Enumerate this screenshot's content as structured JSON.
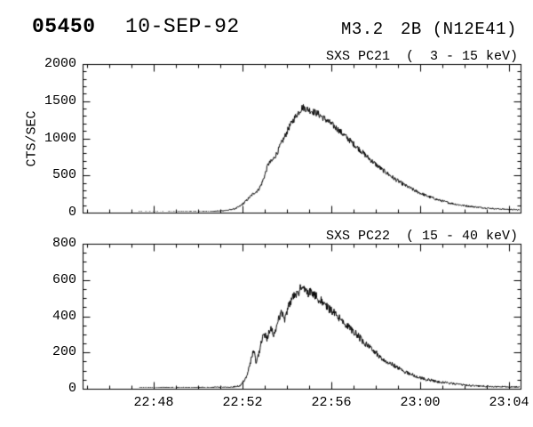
{
  "header": {
    "event_number": "05450",
    "date": "10-SEP-92",
    "xray_class": "M3.2",
    "optical_class_location": "2B (N12E41)"
  },
  "time_axis": {
    "description": "time of day, minutes after 22:40",
    "tick_labels": [
      "22:48",
      "22:52",
      "22:56",
      "23:00",
      "23:04"
    ],
    "tick_minutes": [
      8,
      12,
      16,
      20,
      24
    ],
    "minor_tick_every_minutes": 1,
    "range_minutes": [
      4.8,
      24.52
    ],
    "data_start_minute": 7.28
  },
  "chart_data": [
    {
      "type": "line",
      "title": "SXS PC21  (  3 - 15 keV)",
      "ylabel": "CTS/SEC",
      "ylim": [
        0,
        2000
      ],
      "ytick_values": [
        0,
        500,
        1000,
        1500,
        2000
      ],
      "ytick_labels": [
        "0",
        "500",
        "1000",
        "1500",
        "2000"
      ],
      "ytick_minor_step": 100,
      "grid": false,
      "line_color": "#000000",
      "series": [
        {
          "name": "SXS PC21 3-15 keV count rate",
          "units": "CTS/SEC",
          "noise_k": 1.3,
          "noise_floor": 7,
          "points": [
            [
              7.28,
              8
            ],
            [
              8.0,
              9
            ],
            [
              9.0,
              10
            ],
            [
              10.0,
              12
            ],
            [
              10.6,
              15
            ],
            [
              11.0,
              22
            ],
            [
              11.4,
              35
            ],
            [
              11.7,
              55
            ],
            [
              11.9,
              90
            ],
            [
              12.1,
              140
            ],
            [
              12.3,
              200
            ],
            [
              12.5,
              260
            ],
            [
              12.7,
              300
            ],
            [
              12.85,
              380
            ],
            [
              13.0,
              500
            ],
            [
              13.15,
              650
            ],
            [
              13.35,
              700
            ],
            [
              13.55,
              800
            ],
            [
              13.7,
              900
            ],
            [
              13.9,
              1020
            ],
            [
              14.1,
              1150
            ],
            [
              14.4,
              1300
            ],
            [
              14.7,
              1420
            ],
            [
              14.95,
              1390
            ],
            [
              15.4,
              1330
            ],
            [
              15.8,
              1240
            ],
            [
              16.3,
              1120
            ],
            [
              16.8,
              980
            ],
            [
              17.3,
              840
            ],
            [
              17.8,
              700
            ],
            [
              18.3,
              575
            ],
            [
              18.8,
              465
            ],
            [
              19.3,
              370
            ],
            [
              19.8,
              290
            ],
            [
              20.3,
              225
            ],
            [
              20.8,
              172
            ],
            [
              21.3,
              132
            ],
            [
              21.8,
              102
            ],
            [
              22.3,
              82
            ],
            [
              22.8,
              66
            ],
            [
              23.3,
              54
            ],
            [
              23.8,
              45
            ],
            [
              24.3,
              38
            ],
            [
              24.52,
              35
            ]
          ]
        }
      ]
    },
    {
      "type": "line",
      "title": "SXS PC22  ( 15 - 40 keV)",
      "ylabel": "",
      "ylim": [
        0,
        800
      ],
      "ytick_values": [
        0,
        200,
        400,
        600,
        800
      ],
      "ytick_labels": [
        "0",
        "200",
        "400",
        "600",
        "800"
      ],
      "ytick_minor_step": 50,
      "grid": false,
      "line_color": "#000000",
      "series": [
        {
          "name": "SXS PC22 15-40 keV count rate",
          "units": "CTS/SEC",
          "noise_k": 1.15,
          "noise_floor": 3,
          "points": [
            [
              7.28,
              5
            ],
            [
              9.0,
              6
            ],
            [
              10.5,
              7
            ],
            [
              11.5,
              9
            ],
            [
              11.9,
              15
            ],
            [
              12.15,
              60
            ],
            [
              12.35,
              140
            ],
            [
              12.5,
              215
            ],
            [
              12.62,
              140
            ],
            [
              12.8,
              230
            ],
            [
              12.96,
              310
            ],
            [
              13.1,
              275
            ],
            [
              13.25,
              330
            ],
            [
              13.42,
              300
            ],
            [
              13.6,
              370
            ],
            [
              13.75,
              430
            ],
            [
              13.9,
              385
            ],
            [
              14.1,
              470
            ],
            [
              14.3,
              505
            ],
            [
              14.5,
              530
            ],
            [
              14.7,
              570
            ],
            [
              14.9,
              525
            ],
            [
              15.1,
              540
            ],
            [
              15.35,
              505
            ],
            [
              15.6,
              478
            ],
            [
              15.9,
              440
            ],
            [
              16.3,
              398
            ],
            [
              16.7,
              348
            ],
            [
              17.1,
              305
            ],
            [
              17.5,
              252
            ],
            [
              17.9,
              208
            ],
            [
              18.3,
              166
            ],
            [
              18.7,
              136
            ],
            [
              19.1,
              108
            ],
            [
              19.5,
              84
            ],
            [
              19.9,
              64
            ],
            [
              20.3,
              51
            ],
            [
              20.9,
              37
            ],
            [
              21.5,
              27
            ],
            [
              22.1,
              19
            ],
            [
              22.8,
              14
            ],
            [
              23.6,
              11
            ],
            [
              24.52,
              10
            ]
          ]
        }
      ]
    }
  ]
}
